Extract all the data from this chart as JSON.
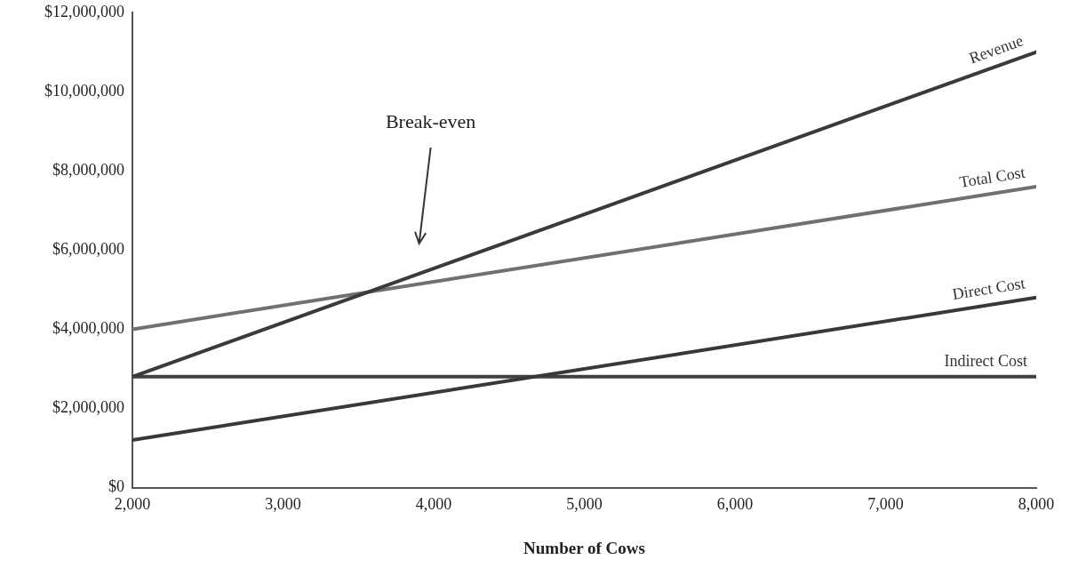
{
  "chart_data": {
    "type": "line",
    "xlabel": "Number of Cows",
    "x": [
      2000,
      8000
    ],
    "series": [
      {
        "name": "Revenue",
        "color": "#3a3a3a",
        "values": [
          2800000,
          11000000
        ]
      },
      {
        "name": "Total Cost",
        "color": "#707070",
        "values": [
          4000000,
          7600000
        ]
      },
      {
        "name": "Direct Cost",
        "color": "#383838",
        "values": [
          1200000,
          4800000
        ]
      },
      {
        "name": "Indirect Cost",
        "color": "#404040",
        "values": [
          2800000,
          2800000
        ]
      }
    ],
    "xlim": [
      2000,
      8000
    ],
    "xticks": [
      {
        "value": 2000,
        "label": "2,000"
      },
      {
        "value": 3000,
        "label": "3,000"
      },
      {
        "value": 4000,
        "label": "4,000"
      },
      {
        "value": 5000,
        "label": "5,000"
      },
      {
        "value": 6000,
        "label": "6,000"
      },
      {
        "value": 7000,
        "label": "7,000"
      },
      {
        "value": 8000,
        "label": "8,000"
      }
    ],
    "ylim": [
      0,
      12000000
    ],
    "yticks": [
      {
        "value": 0,
        "label": "$0"
      },
      {
        "value": 2000000,
        "label": "$2,000,000"
      },
      {
        "value": 4000000,
        "label": "$4,000,000"
      },
      {
        "value": 6000000,
        "label": "$6,000,000"
      },
      {
        "value": 8000000,
        "label": "$8,000,000"
      },
      {
        "value": 10000000,
        "label": "$10,000,000"
      },
      {
        "value": 12000000,
        "label": "$12,000,000"
      }
    ],
    "annotations": [
      "Break-even"
    ],
    "grid": false,
    "legend": false,
    "marker": "none",
    "line_style": "solid"
  }
}
